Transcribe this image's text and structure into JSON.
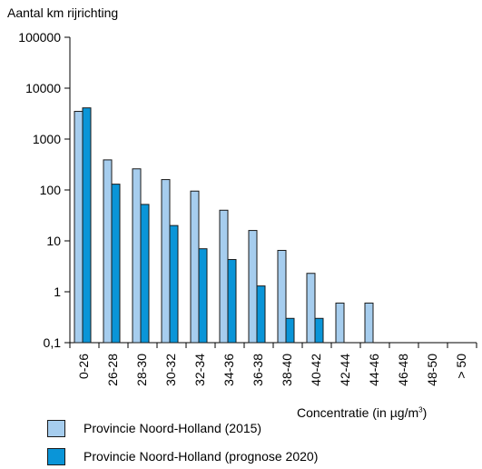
{
  "chart_data": {
    "type": "bar",
    "ylabel": "Aantal km rijrichting",
    "xlabel": {
      "text": "Concentratie (in µg/m",
      "superscript": "3",
      "suffix": ")"
    },
    "yscale": "log",
    "ylim": [
      0.1,
      100000
    ],
    "yticks": [
      "0,1",
      "1",
      "10",
      "100",
      "1000",
      "10000",
      "100000"
    ],
    "categories": [
      "0-26",
      "26-28",
      "28-30",
      "30-32",
      "32-34",
      "34-36",
      "36-38",
      "38-40",
      "40-42",
      "42-44",
      "44-46",
      "46-48",
      "48-50",
      "> 50"
    ],
    "series": [
      {
        "name": "Provincie Noord-Holland (2015)",
        "color": "#a6cdee",
        "values": [
          3500,
          390,
          260,
          160,
          95,
          40,
          16,
          6.5,
          2.3,
          0.6,
          0.6,
          0,
          0,
          0
        ]
      },
      {
        "name": "Provincie Noord-Holland (prognose 2020)",
        "color": "#0a95d8",
        "values": [
          4100,
          130,
          52,
          20,
          7,
          4.3,
          1.3,
          0.3,
          0.3,
          0,
          0,
          0,
          0,
          0
        ]
      }
    ],
    "legend_position": "bottom",
    "grid": false
  }
}
